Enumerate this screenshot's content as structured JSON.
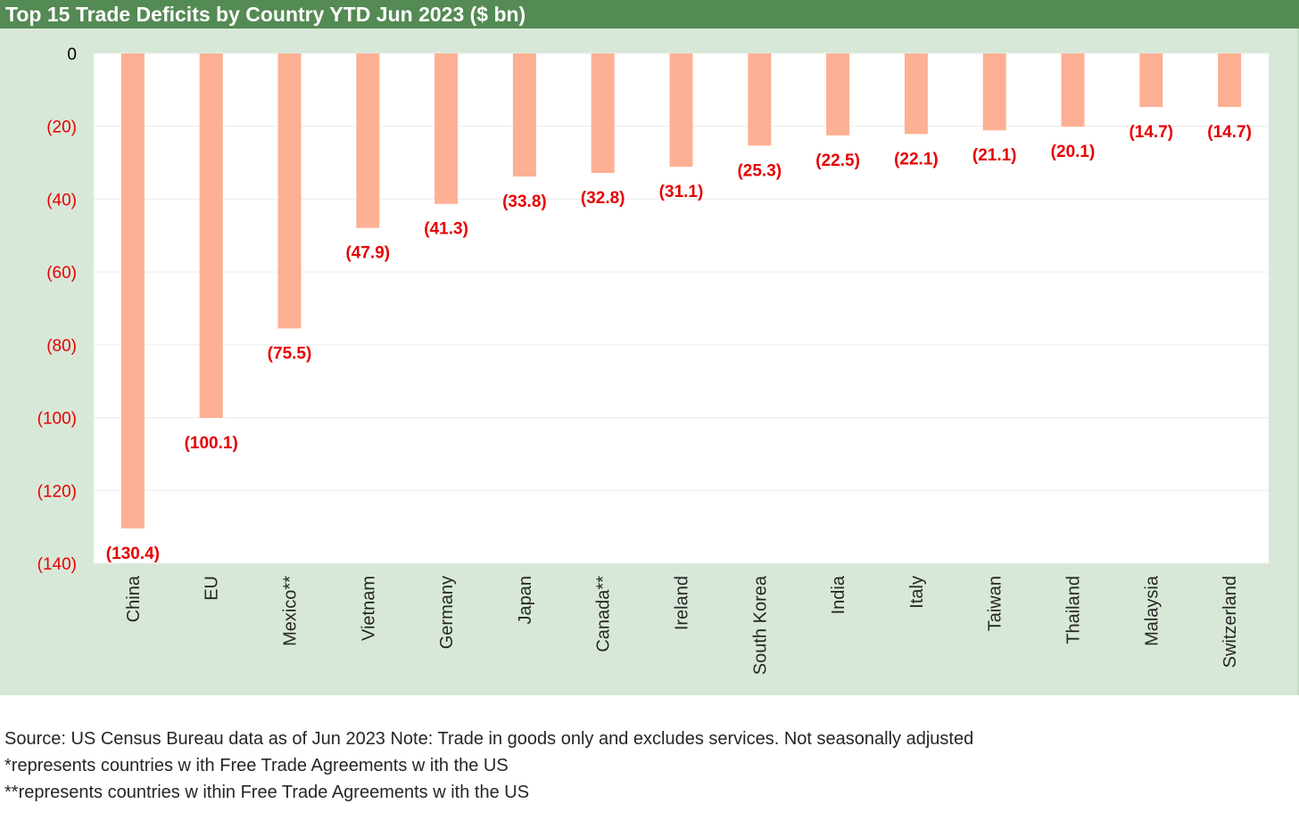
{
  "title": "Top 15 Trade Deficits by Country YTD Jun 2023 ($ bn)",
  "chart_data": {
    "type": "bar",
    "categories": [
      "China",
      "EU",
      "Mexico**",
      "Vietnam",
      "Germany",
      "Japan",
      "Canada**",
      "Ireland",
      "South Korea",
      "India",
      "Italy",
      "Taiwan",
      "Thailand",
      "Malaysia",
      "Switzerland"
    ],
    "values": [
      -130.4,
      -100.1,
      -75.5,
      -47.9,
      -41.3,
      -33.8,
      -32.8,
      -31.1,
      -25.3,
      -22.5,
      -22.1,
      -21.1,
      -20.1,
      -14.7,
      -14.7
    ],
    "data_labels": [
      "(130.4)",
      "(100.1)",
      "(75.5)",
      "(47.9)",
      "(41.3)",
      "(33.8)",
      "(32.8)",
      "(31.1)",
      "(25.3)",
      "(22.5)",
      "(22.1)",
      "(21.1)",
      "(20.1)",
      "(14.7)",
      "(14.7)"
    ],
    "ylim": [
      -140,
      0
    ],
    "yticks": [
      0,
      -20,
      -40,
      -60,
      -80,
      -100,
      -120,
      -140
    ],
    "ytick_labels": [
      "0",
      "(20)",
      "(40)",
      "(60)",
      "(80)",
      "(100)",
      "(120)",
      "(140)"
    ],
    "grid": true,
    "bar_color": "#fdb093",
    "label_color": "#e60000",
    "negative_tick_color": "#e60000"
  },
  "footnotes": [
    "Source: US Census Bureau data as of Jun 2023 Note: Trade in goods only and excludes services. Not seasonally adjusted",
    "*represents countries w ith Free Trade Agreements w ith the US",
    "**represents countries w ithin Free Trade Agreements w ith the US"
  ]
}
